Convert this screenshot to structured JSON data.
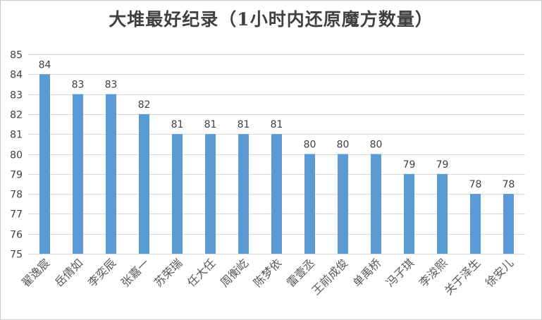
{
  "chart_data": {
    "type": "bar",
    "title": "大堆最好纪录（1小时内还原魔方数量）",
    "xlabel": "",
    "ylabel": "",
    "ylim": [
      75,
      85
    ],
    "yticks": [
      75,
      76,
      77,
      78,
      79,
      80,
      81,
      82,
      83,
      84,
      85
    ],
    "grid": true,
    "legend": "none",
    "bar_color": "#5b9bd5",
    "categories": [
      "翟逸宸",
      "岳倩如",
      "李奕辰",
      "张嘉一",
      "苏荣瑞",
      "任大任",
      "周衡屹",
      "陈梦依",
      "雷壹丞",
      "王前成俊",
      "单禹桥",
      "冯子琪",
      "李浚熙",
      "关于泽生",
      "徐安儿"
    ],
    "values": [
      84,
      83,
      83,
      82,
      81,
      81,
      81,
      81,
      80,
      80,
      80,
      79,
      79,
      78,
      78
    ]
  }
}
